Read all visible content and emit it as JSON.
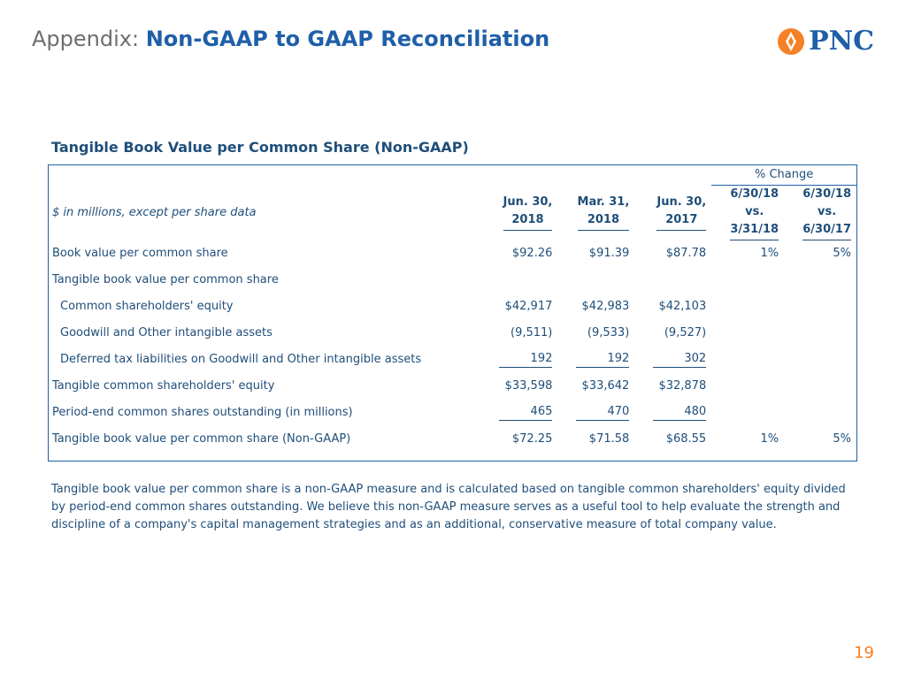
{
  "header": {
    "prefix": "Appendix:",
    "title": "Non-GAAP to GAAP Reconciliation",
    "logo_text": "PNC",
    "logo_color": "#F58025",
    "brand_color": "#1F5FA8"
  },
  "section_title": "Tangible Book Value per Common Share (Non-GAAP)",
  "table": {
    "group_header": "% Change",
    "label_header": "$ in millions, except per share data",
    "columns": [
      {
        "line1": "Jun. 30,",
        "line2": "2018"
      },
      {
        "line1": "Mar. 31,",
        "line2": "2018"
      },
      {
        "line1": "Jun. 30,",
        "line2": "2017"
      },
      {
        "line1": "6/30/18",
        "line2": "vs.",
        "line3": "3/31/18"
      },
      {
        "line1": "6/30/18",
        "line2": "vs.",
        "line3": "6/30/17"
      }
    ],
    "rows": [
      {
        "label": "Book value per common share",
        "v1": "$92.26",
        "v2": "$91.39",
        "v3": "$87.78",
        "p1": "1%",
        "p2": "5%"
      },
      {
        "label": "Tangible book value per common share"
      },
      {
        "label": "Common shareholders' equity",
        "v1": "$42,917",
        "v2": "$42,983",
        "v3": "$42,103"
      },
      {
        "label": "Goodwill and Other intangible assets",
        "v1": "(9,511)",
        "v2": "(9,533)",
        "v3": "(9,527)"
      },
      {
        "label": "Deferred tax liabilities on Goodwill and Other intangible assets",
        "v1": "192",
        "v2": "192",
        "v3": "302"
      },
      {
        "label": "Tangible common shareholders' equity",
        "v1": "$33,598",
        "v2": "$33,642",
        "v3": "$32,878"
      },
      {
        "label": "Period-end common shares outstanding (in millions)",
        "v1": "465",
        "v2": "470",
        "v3": "480"
      },
      {
        "label": "Tangible book value per common share (Non-GAAP)",
        "v1": "$72.25",
        "v2": "$71.58",
        "v3": "$68.55",
        "p1": "1%",
        "p2": "5%"
      }
    ]
  },
  "footnote": "Tangible book value per common share is a non-GAAP measure and is calculated based on tangible common shareholders' equity divided by period-end common shares outstanding. We believe this non-GAAP measure serves as a useful tool to help evaluate the strength and discipline of a company's capital management strategies and as an additional, conservative measure of total company value.",
  "page_number": "19"
}
